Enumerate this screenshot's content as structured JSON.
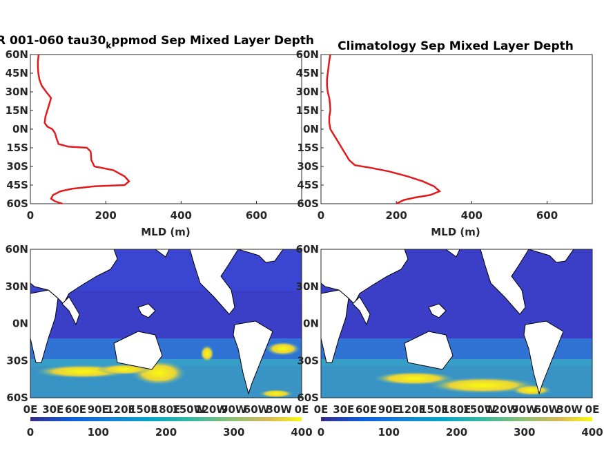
{
  "chart_data": [
    {
      "type": "line",
      "title": "R 001-060 tau30",
      "title_subscript": "k",
      "title_rest": "ppmod Sep Mixed Layer Depth",
      "xlabel": "MLD (m)",
      "xlim": [
        0,
        720
      ],
      "ylim": [
        -60,
        60
      ],
      "xticks": [
        "0",
        "200",
        "400",
        "600"
      ],
      "xtick_values": [
        0,
        200,
        400,
        600
      ],
      "yticks": [
        "60N",
        "45N",
        "30N",
        "15N",
        "0N",
        "15S",
        "30S",
        "45S",
        "60S"
      ],
      "ytick_values": [
        60,
        45,
        30,
        15,
        0,
        -15,
        -30,
        -45,
        -60
      ],
      "series_color": "#e31a1c",
      "points": [
        [
          22,
          60
        ],
        [
          20,
          55
        ],
        [
          20,
          50
        ],
        [
          21,
          45
        ],
        [
          24,
          40
        ],
        [
          30,
          35
        ],
        [
          42,
          30
        ],
        [
          55,
          25
        ],
        [
          50,
          20
        ],
        [
          45,
          15
        ],
        [
          40,
          10
        ],
        [
          38,
          5
        ],
        [
          45,
          2
        ],
        [
          58,
          0
        ],
        [
          65,
          -3
        ],
        [
          70,
          -8
        ],
        [
          75,
          -12
        ],
        [
          100,
          -14
        ],
        [
          150,
          -15
        ],
        [
          160,
          -18
        ],
        [
          162,
          -25
        ],
        [
          170,
          -30
        ],
        [
          220,
          -33
        ],
        [
          250,
          -38
        ],
        [
          262,
          -42
        ],
        [
          250,
          -45
        ],
        [
          170,
          -46
        ],
        [
          110,
          -48
        ],
        [
          80,
          -50
        ],
        [
          60,
          -53
        ],
        [
          55,
          -56
        ],
        [
          65,
          -58
        ],
        [
          85,
          -60
        ]
      ]
    },
    {
      "type": "line",
      "title": "Climatology Sep Mixed Layer Depth",
      "xlabel": "MLD (m)",
      "xlim": [
        0,
        720
      ],
      "ylim": [
        -60,
        60
      ],
      "xticks": [
        "0",
        "200",
        "400",
        "600"
      ],
      "xtick_values": [
        0,
        200,
        400,
        600
      ],
      "yticks": [
        "60N",
        "45N",
        "30N",
        "15N",
        "0N",
        "15S",
        "30S",
        "45S",
        "60S"
      ],
      "ytick_values": [
        60,
        45,
        30,
        15,
        0,
        -15,
        -30,
        -45,
        -60
      ],
      "series_color": "#e31a1c",
      "points": [
        [
          25,
          60
        ],
        [
          22,
          55
        ],
        [
          20,
          50
        ],
        [
          18,
          45
        ],
        [
          16,
          40
        ],
        [
          16,
          35
        ],
        [
          18,
          30
        ],
        [
          22,
          25
        ],
        [
          24,
          20
        ],
        [
          25,
          15
        ],
        [
          22,
          10
        ],
        [
          22,
          5
        ],
        [
          25,
          0
        ],
        [
          35,
          -5
        ],
        [
          45,
          -10
        ],
        [
          55,
          -15
        ],
        [
          65,
          -20
        ],
        [
          75,
          -25
        ],
        [
          90,
          -29
        ],
        [
          130,
          -31
        ],
        [
          180,
          -34
        ],
        [
          230,
          -38
        ],
        [
          270,
          -42
        ],
        [
          300,
          -46
        ],
        [
          315,
          -50
        ],
        [
          290,
          -53
        ],
        [
          250,
          -55
        ],
        [
          220,
          -57
        ],
        [
          200,
          -60
        ]
      ]
    },
    {
      "type": "heatmap",
      "xticks": [
        "0E",
        "30E",
        "60E",
        "90E",
        "120E",
        "150E",
        "180E",
        "150W",
        "120W",
        "90W",
        "60W",
        "30W",
        "0E"
      ],
      "yticks": [
        "60N",
        "30N",
        "0N",
        "30S",
        "60S"
      ],
      "ytick_values": [
        60,
        30,
        0,
        -30,
        -60
      ],
      "clim": [
        0,
        400
      ],
      "colorbar_ticks": [
        "0",
        "100",
        "200",
        "300",
        "400"
      ],
      "colormap": "parula"
    },
    {
      "type": "heatmap",
      "xticks": [
        "0E",
        "30E",
        "60E",
        "90E",
        "120E",
        "150E",
        "180E",
        "150W",
        "120W",
        "90W",
        "60W",
        "30W",
        "0E"
      ],
      "yticks": [
        "60N",
        "30N",
        "0N",
        "30S",
        "60S"
      ],
      "ytick_values": [
        60,
        30,
        0,
        -30,
        -60
      ],
      "clim": [
        0,
        400
      ],
      "colorbar_ticks": [
        "0",
        "100",
        "200",
        "300",
        "400"
      ],
      "colormap": "parula"
    }
  ]
}
